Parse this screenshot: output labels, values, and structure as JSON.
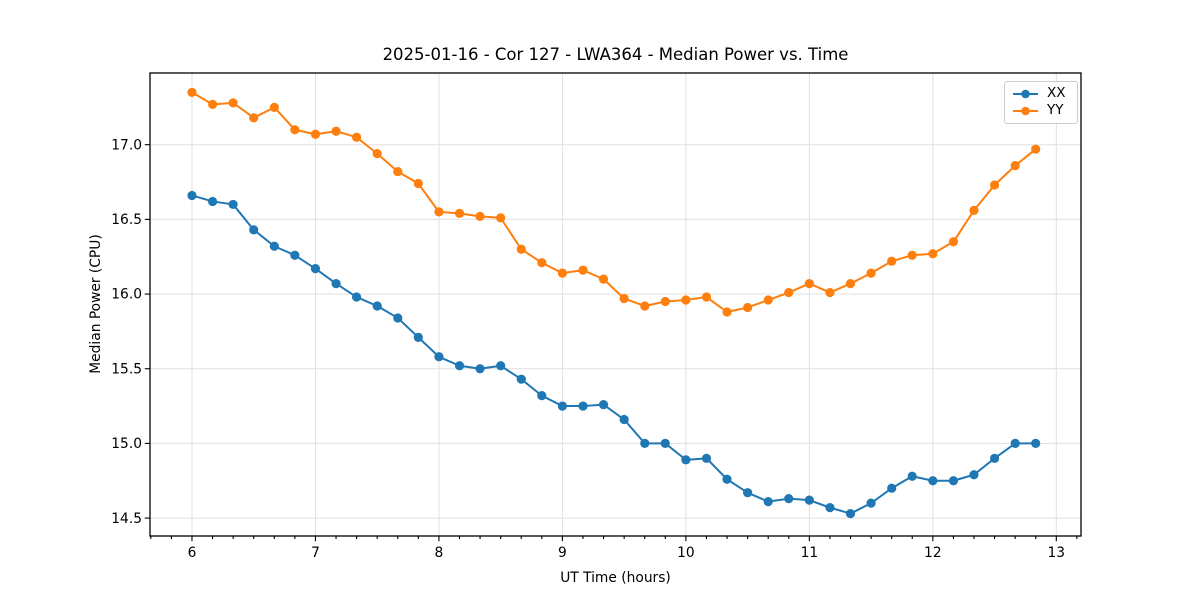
{
  "chart_data": {
    "type": "line",
    "title": "2025-01-16 - Cor 127 - LWA364 - Median Power vs. Time",
    "xlabel": "UT Time (hours)",
    "ylabel": "Median Power (CPU)",
    "x": [
      6.0,
      6.167,
      6.333,
      6.5,
      6.667,
      6.833,
      7.0,
      7.167,
      7.333,
      7.5,
      7.667,
      7.833,
      8.0,
      8.167,
      8.333,
      8.5,
      8.667,
      8.833,
      9.0,
      9.167,
      9.333,
      9.5,
      9.667,
      9.833,
      10.0,
      10.167,
      10.333,
      10.5,
      10.667,
      10.833,
      11.0,
      11.167,
      11.333,
      11.5,
      11.667,
      11.833,
      12.0,
      12.167,
      12.333,
      12.5,
      12.667,
      12.833
    ],
    "series": [
      {
        "name": "XX",
        "color": "#1f77b4",
        "marker": "circle",
        "values": [
          16.66,
          16.62,
          16.6,
          16.43,
          16.32,
          16.26,
          16.17,
          16.07,
          15.98,
          15.92,
          15.84,
          15.71,
          15.58,
          15.52,
          15.5,
          15.52,
          15.43,
          15.32,
          15.25,
          15.25,
          15.26,
          15.16,
          15.0,
          15.0,
          14.89,
          14.9,
          14.76,
          14.67,
          14.61,
          14.63,
          14.62,
          14.57,
          14.53,
          14.6,
          14.7,
          14.78,
          14.75,
          14.75,
          14.79,
          14.9,
          15.0,
          15.0
        ]
      },
      {
        "name": "YY",
        "color": "#ff7f0e",
        "marker": "circle",
        "values": [
          17.35,
          17.27,
          17.28,
          17.18,
          17.25,
          17.1,
          17.07,
          17.09,
          17.05,
          16.94,
          16.82,
          16.74,
          16.55,
          16.54,
          16.52,
          16.51,
          16.3,
          16.21,
          16.14,
          16.16,
          16.1,
          15.97,
          15.92,
          15.95,
          15.96,
          15.98,
          15.88,
          15.91,
          15.96,
          16.01,
          16.07,
          16.01,
          16.07,
          16.14,
          16.22,
          16.26,
          16.27,
          16.35,
          16.56,
          16.73,
          16.86,
          16.97
        ]
      }
    ],
    "xlim": [
      5.66,
      13.2
    ],
    "ylim": [
      14.38,
      17.48
    ],
    "xticks": [
      6,
      7,
      8,
      9,
      10,
      11,
      12,
      13
    ],
    "yticks": [
      14.5,
      15.0,
      15.5,
      16.0,
      16.5,
      17.0
    ],
    "x_minor_tick_interval": 0.1667,
    "grid": true,
    "legend": {
      "position": "upper right",
      "entries": [
        "XX",
        "YY"
      ]
    }
  },
  "colors": {
    "grid": "#e0e0e0",
    "spine": "#000000",
    "tick": "#000000",
    "text": "#000000",
    "background": "#ffffff",
    "legend_border": "#cccccc"
  }
}
